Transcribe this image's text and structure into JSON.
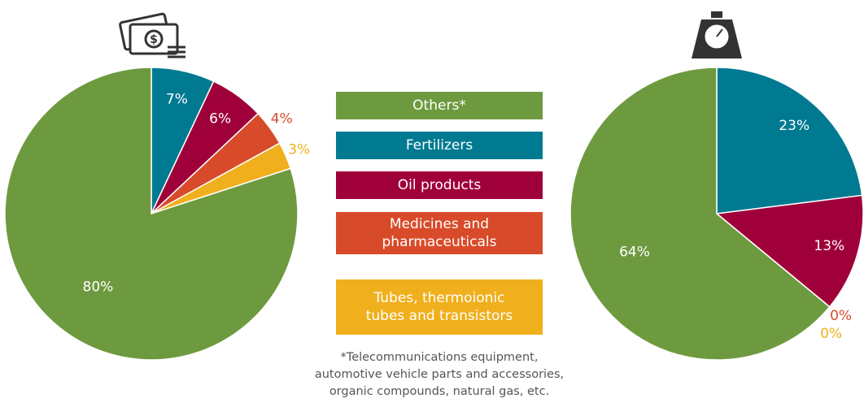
{
  "chart_data": [
    {
      "type": "pie",
      "categories": [
        "Others*",
        "Fertilizers",
        "Oil products",
        "Medicines and pharmaceuticals",
        "Tubes, thermoionic tubes and transistors"
      ],
      "values": [
        80,
        7,
        6,
        4,
        3
      ],
      "value_labels": [
        "80%",
        "7%",
        "6%",
        "4%",
        "3%"
      ],
      "colors": [
        "#6e9a3f",
        "#007a91",
        "#a0003a",
        "#d84b2a",
        "#f0af1c"
      ],
      "annotation": [
        "*Telecommunications equipment,",
        "automotive vehicle parts and accessories,",
        "organic compounds, natural gas, etc."
      ]
    },
    {
      "type": "pie",
      "categories": [
        "Others*",
        "Fertilizers",
        "Oil products",
        "Medicines and pharmaceuticals",
        "Tubes, thermoionic tubes and transistors"
      ],
      "values": [
        64,
        23,
        13,
        0,
        0
      ],
      "value_labels": [
        "64%",
        "23%",
        "13%",
        "0%",
        "0%"
      ],
      "colors": [
        "#6e9a3f",
        "#007a91",
        "#a0003a",
        "#d84b2a",
        "#f0af1c"
      ]
    }
  ]
}
